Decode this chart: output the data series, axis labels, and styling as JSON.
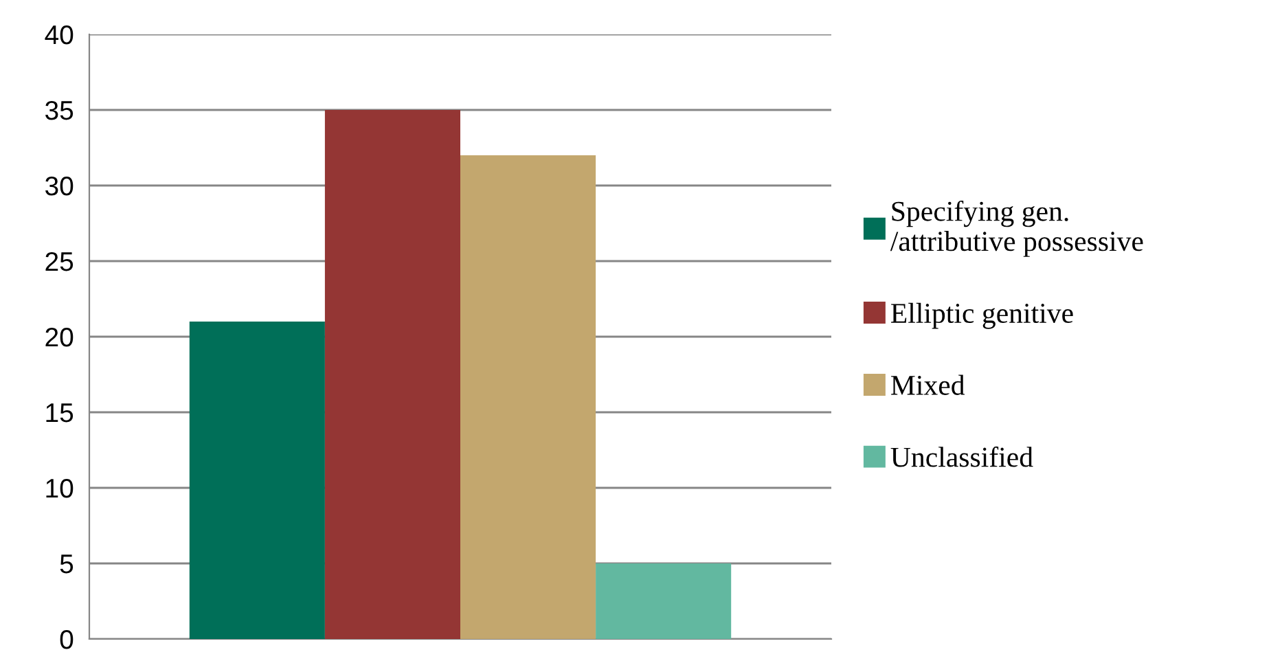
{
  "chart_data": {
    "type": "bar",
    "categories": [
      null
    ],
    "series": [
      {
        "name": "Specifying gen.\n/attributive possessive",
        "color": "#006f58",
        "values": [
          21
        ]
      },
      {
        "name": "Elliptic genitive",
        "color": "#943634",
        "values": [
          35
        ]
      },
      {
        "name": "Mixed",
        "color": "#c3a76e",
        "values": [
          32
        ]
      },
      {
        "name": "Unclassified",
        "color": "#62b8a0",
        "values": [
          5
        ]
      }
    ],
    "ylim": [
      0,
      40
    ],
    "yticks": [
      0,
      5,
      10,
      15,
      20,
      25,
      30,
      35,
      40
    ],
    "grid": "y",
    "legend": "right"
  }
}
